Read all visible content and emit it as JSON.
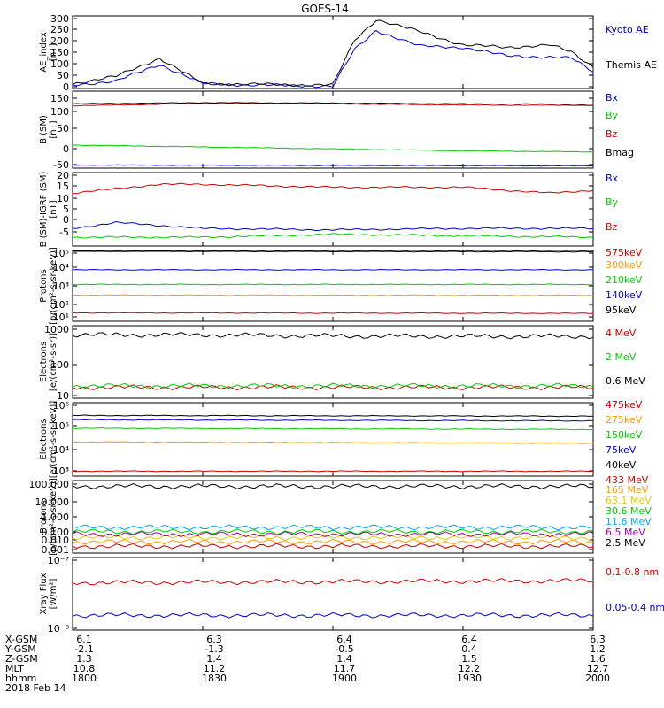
{
  "title": "GOES-14",
  "colors": {
    "black": "#000000",
    "blue": "#0000cc",
    "green": "#00cc00",
    "red": "#cc0000",
    "orange": "#ff9900",
    "cyan": "#00aaff",
    "yellow": "#ddcc00",
    "magenta": "#aa00aa"
  },
  "x_ticks": [
    "1800",
    "1830",
    "1900",
    "1930",
    "2000"
  ],
  "ephemeris": {
    "labels": [
      "X-GSM",
      "Y-GSM",
      "Z-GSM",
      "MLT",
      "hhmm",
      "2018 Feb 14"
    ],
    "rows": [
      [
        "6.1",
        "6.3",
        "6.4",
        "6.4",
        "6.3"
      ],
      [
        "-2.1",
        "-1.3",
        "-0.5",
        "0.4",
        "1.2"
      ],
      [
        "1.3",
        "1.4",
        "1.4",
        "1.5",
        "1.6"
      ],
      [
        "10.8",
        "11.2",
        "11.7",
        "12.2",
        "12.7"
      ],
      [
        "1800",
        "1830",
        "1900",
        "1930",
        "2000"
      ]
    ]
  },
  "panels": [
    {
      "ylabel": [
        "AE_index",
        "[nT]"
      ],
      "ticks": [
        "300",
        "250",
        "200",
        "150",
        "100",
        "50",
        "0"
      ],
      "legend": [
        {
          "text": "Kyoto AE",
          "color": "blue"
        },
        {
          "text": "Themis AE",
          "color": "black"
        }
      ]
    },
    {
      "ylabel": [
        "B (SM)",
        "[nT]"
      ],
      "ticks": [
        "150",
        "100",
        "50",
        "0",
        "-50"
      ],
      "legend": [
        {
          "text": "Bx",
          "color": "blue"
        },
        {
          "text": "By",
          "color": "green"
        },
        {
          "text": "Bz",
          "color": "red"
        },
        {
          "text": "Bmag",
          "color": "black"
        }
      ]
    },
    {
      "ylabel": [
        "B (SM)-IGRF (SM)",
        "[nT]"
      ],
      "ticks": [
        "20",
        "15",
        "10",
        "5",
        "0",
        "-5"
      ],
      "legend": [
        {
          "text": "Bx",
          "color": "blue"
        },
        {
          "text": "By",
          "color": "green"
        },
        {
          "text": "Bz",
          "color": "red"
        }
      ]
    },
    {
      "ylabel": [
        "Protons",
        "[p/(cm²-s-sr-keV)]"
      ],
      "ticks": [
        "10⁵",
        "10⁴",
        "10³",
        "10²",
        "10¹"
      ],
      "legend": [
        {
          "text": "575keV",
          "color": "red"
        },
        {
          "text": "300keV",
          "color": "orange"
        },
        {
          "text": "210keV",
          "color": "green"
        },
        {
          "text": "140keV",
          "color": "blue"
        },
        {
          "text": "95keV",
          "color": "black"
        }
      ]
    },
    {
      "ylabel": [
        "Electrons",
        "[e/(cm²-s-sr)]"
      ],
      "ticks": [
        "1000",
        "100",
        "10"
      ],
      "legend": [
        {
          "text": "4 MeV",
          "color": "red"
        },
        {
          "text": "2 MeV",
          "color": "green"
        },
        {
          "text": "0.6 MeV",
          "color": "black"
        }
      ]
    },
    {
      "ylabel": [
        "Electrons",
        "[e/(cm²-s-sr-keV)]"
      ],
      "ticks": [
        "10⁶",
        "10⁵",
        "10⁴",
        "10³"
      ],
      "legend": [
        {
          "text": "475keV",
          "color": "red"
        },
        {
          "text": "275keV",
          "color": "orange"
        },
        {
          "text": "150keV",
          "color": "green"
        },
        {
          "text": "75keV",
          "color": "blue"
        },
        {
          "text": "40keV",
          "color": "black"
        }
      ]
    },
    {
      "ylabel": [
        "Protons",
        "[p/(cm²-s-sr-keV)]"
      ],
      "ticks": [
        "100.000",
        "10.000",
        "1.000",
        "0.100",
        "0.010",
        "0.001"
      ],
      "legend": [
        {
          "text": "433 MeV",
          "color": "red"
        },
        {
          "text": "165 MeV",
          "color": "orange"
        },
        {
          "text": "63.1 MeV",
          "color": "yellow"
        },
        {
          "text": "30.6 MeV",
          "color": "green"
        },
        {
          "text": "11.6 MeV",
          "color": "cyan"
        },
        {
          "text": "6.5 MeV",
          "color": "magenta"
        },
        {
          "text": "2.5 MeV",
          "color": "black"
        }
      ]
    },
    {
      "ylabel": [
        "Xray Flux",
        "[W/m²]"
      ],
      "ticks": [
        "10⁻⁷",
        "10⁻⁸"
      ],
      "legend": [
        {
          "text": "0.1-0.8 nm",
          "color": "red"
        },
        {
          "text": "0.05-0.4 nm",
          "color": "blue"
        }
      ]
    }
  ],
  "chart_data": [
    {
      "type": "line",
      "x_range": [
        "1800",
        "2000"
      ],
      "ylim": [
        0,
        300
      ],
      "series": [
        {
          "name": "Kyoto AE",
          "color": "blue",
          "x": [
            1800,
            1810,
            1820,
            1830,
            1840,
            1850,
            1900,
            1905,
            1910,
            1920,
            1930,
            1940,
            1950,
            1955,
            2000
          ],
          "values": [
            15,
            30,
            100,
            20,
            15,
            12,
            10,
            160,
            240,
            175,
            170,
            135,
            130,
            125,
            70
          ]
        },
        {
          "name": "Themis AE",
          "color": "black",
          "x": [
            1800,
            1810,
            1820,
            1830,
            1840,
            1850,
            1900,
            1905,
            1910,
            1920,
            1930,
            1940,
            1950,
            1955,
            2000
          ],
          "values": [
            20,
            50,
            125,
            20,
            18,
            15,
            15,
            200,
            285,
            235,
            180,
            170,
            180,
            150,
            90
          ]
        }
      ]
    },
    {
      "type": "line",
      "x_range": [
        "1800",
        "2000"
      ],
      "ylim": [
        -50,
        150
      ],
      "series": [
        {
          "name": "Bx",
          "color": "blue",
          "x": [
            1800,
            2000
          ],
          "values": [
            -42,
            -44
          ]
        },
        {
          "name": "By",
          "color": "green",
          "x": [
            1800,
            1830,
            1900,
            1930,
            2000
          ],
          "values": [
            10,
            5,
            0,
            -5,
            -8
          ]
        },
        {
          "name": "Bz",
          "color": "red",
          "x": [
            1800,
            1830,
            1900,
            1930,
            2000
          ],
          "values": [
            112,
            118,
            117,
            114,
            113
          ]
        },
        {
          "name": "Bmag",
          "color": "black",
          "x": [
            1800,
            1830,
            1900,
            1930,
            2000
          ],
          "values": [
            117,
            120,
            119,
            117,
            116
          ]
        }
      ]
    },
    {
      "type": "line",
      "x_range": [
        "1800",
        "2000"
      ],
      "ylim": [
        -5,
        20
      ],
      "series": [
        {
          "name": "Bx",
          "color": "blue",
          "x": [
            1800,
            1810,
            1830,
            1900,
            1930,
            2000
          ],
          "values": [
            1,
            3,
            1,
            0.5,
            1,
            1
          ]
        },
        {
          "name": "By",
          "color": "green",
          "x": [
            1800,
            1830,
            1900,
            1930,
            2000
          ],
          "values": [
            -2,
            -2,
            -1,
            -1.5,
            -2
          ]
        },
        {
          "name": "Bz",
          "color": "red",
          "x": [
            1800,
            1820,
            1830,
            1900,
            1930,
            1950,
            2000
          ],
          "values": [
            13,
            16,
            16,
            15,
            15,
            13,
            14
          ]
        }
      ]
    },
    {
      "type": "line",
      "x_range": [
        "1800",
        "2000"
      ],
      "log": true,
      "ylim": [
        10,
        100000
      ],
      "series": [
        {
          "name": "575keV",
          "color": "red",
          "x": [
            1800,
            2000
          ],
          "values": [
            30,
            28
          ]
        },
        {
          "name": "300keV",
          "color": "orange",
          "x": [
            1800,
            2000
          ],
          "values": [
            300,
            290
          ]
        },
        {
          "name": "210keV",
          "color": "green",
          "x": [
            1800,
            2000
          ],
          "values": [
            1200,
            1200
          ]
        },
        {
          "name": "140keV",
          "color": "blue",
          "x": [
            1800,
            2000
          ],
          "values": [
            8000,
            8000
          ]
        },
        {
          "name": "95keV",
          "color": "black",
          "x": [
            1800,
            2000
          ],
          "values": [
            90000,
            85000
          ]
        }
      ]
    },
    {
      "type": "line",
      "x_range": [
        "1800",
        "2000"
      ],
      "log": true,
      "ylim": [
        10,
        1000
      ],
      "series": [
        {
          "name": "4 MeV",
          "color": "red",
          "x": [
            1800,
            2000
          ],
          "values": [
            20,
            20
          ]
        },
        {
          "name": "2 MeV",
          "color": "green",
          "x": [
            1800,
            2000
          ],
          "values": [
            22,
            22
          ]
        },
        {
          "name": "0.6 MeV",
          "color": "black",
          "x": [
            1800,
            1830,
            1900,
            1930,
            2000
          ],
          "values": [
            560,
            560,
            520,
            510,
            510
          ]
        }
      ]
    },
    {
      "type": "line",
      "x_range": [
        "1800",
        "2000"
      ],
      "log": true,
      "ylim": [
        1000,
        1000000
      ],
      "series": [
        {
          "name": "475keV",
          "color": "red",
          "x": [
            1800,
            2000
          ],
          "values": [
            1600,
            1600
          ]
        },
        {
          "name": "275keV",
          "color": "orange",
          "x": [
            1800,
            2000
          ],
          "values": [
            25000,
            22000
          ]
        },
        {
          "name": "150keV",
          "color": "green",
          "x": [
            1800,
            2000
          ],
          "values": [
            90000,
            80000
          ]
        },
        {
          "name": "75keV",
          "color": "blue",
          "x": [
            1800,
            2000
          ],
          "values": [
            200000,
            180000
          ]
        },
        {
          "name": "40keV",
          "color": "black",
          "x": [
            1800,
            2000
          ],
          "values": [
            300000,
            280000
          ]
        }
      ]
    },
    {
      "type": "line",
      "x_range": [
        "1800",
        "2000"
      ],
      "log": true,
      "ylim": [
        0.001,
        100
      ],
      "series": [
        {
          "name": "433 MeV",
          "color": "red",
          "x": [
            1800,
            2000
          ],
          "values": [
            0.003,
            0.003
          ]
        },
        {
          "name": "165 MeV",
          "color": "orange",
          "x": [
            1800,
            2000
          ],
          "values": [
            0.006,
            0.006
          ]
        },
        {
          "name": "63.1 MeV",
          "color": "yellow",
          "x": [
            1800,
            2000
          ],
          "values": [
            0.012,
            0.012
          ]
        },
        {
          "name": "30.6 MeV",
          "color": "green",
          "x": [
            1800,
            2000
          ],
          "values": [
            0.03,
            0.03
          ]
        },
        {
          "name": "11.6 MeV",
          "color": "cyan",
          "x": [
            1800,
            2000
          ],
          "values": [
            0.06,
            0.06
          ]
        },
        {
          "name": "6.5 MeV",
          "color": "magenta",
          "x": [
            1800,
            2000
          ],
          "values": [
            0.02,
            0.02
          ]
        },
        {
          "name": "2.5 MeV",
          "color": "black",
          "x": [
            1800,
            2000
          ],
          "values": [
            40,
            40
          ]
        }
      ]
    },
    {
      "type": "line",
      "x_range": [
        "1800",
        "2000"
      ],
      "log": true,
      "ylim": [
        1e-08,
        1e-07
      ],
      "series": [
        {
          "name": "0.1-0.8 nm",
          "color": "red",
          "x": [
            1800,
            2000
          ],
          "values": [
            4.5e-08,
            4.8e-08
          ]
        },
        {
          "name": "0.05-0.4 nm",
          "color": "blue",
          "x": [
            1800,
            2000
          ],
          "values": [
            1.6e-08,
            1.6e-08
          ]
        }
      ]
    }
  ]
}
